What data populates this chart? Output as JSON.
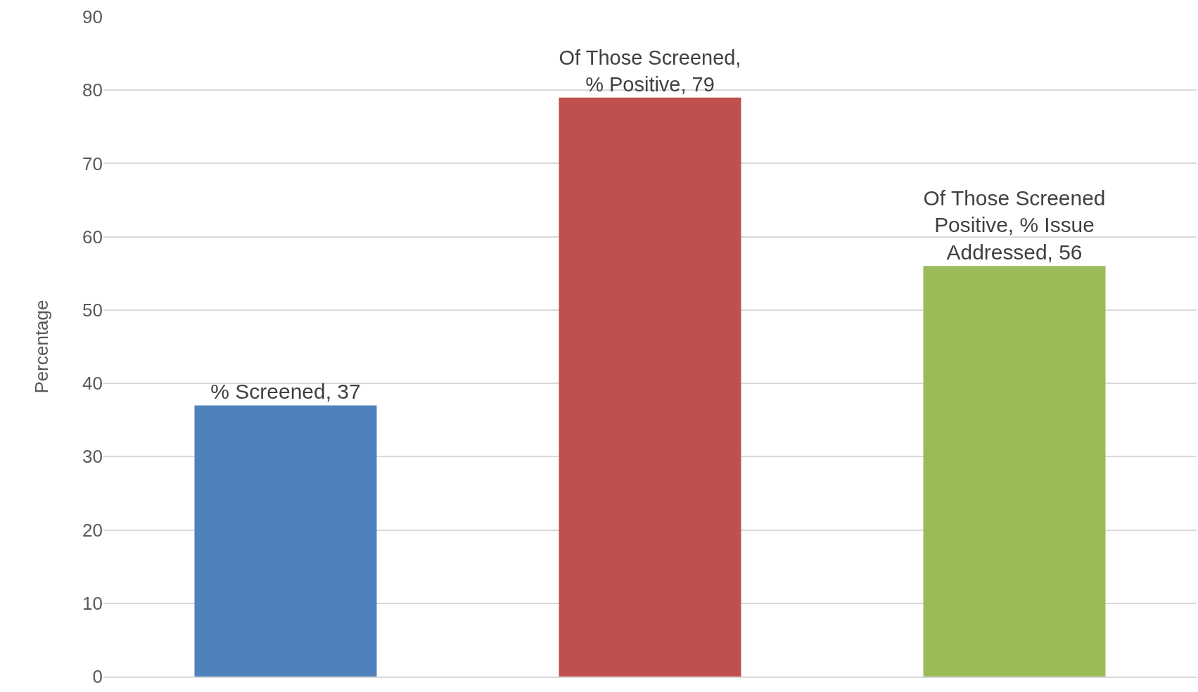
{
  "chart_data": {
    "type": "bar",
    "ylabel": "Percentage",
    "categories": [
      null,
      null,
      null
    ],
    "values": [
      37,
      79,
      56
    ],
    "colors": [
      "#4f81bd",
      "#c0504d",
      "#9bbb59"
    ],
    "value_labels": [
      "% Screened, 37",
      "Of Those Screened, % Positive, 79",
      "Of Those Screened Positive, % Issue Addressed, 56"
    ],
    "ylim": [
      0,
      90
    ],
    "yticks": [
      0,
      10,
      20,
      30,
      40,
      50,
      60,
      70,
      80,
      90
    ],
    "grid": "y"
  }
}
